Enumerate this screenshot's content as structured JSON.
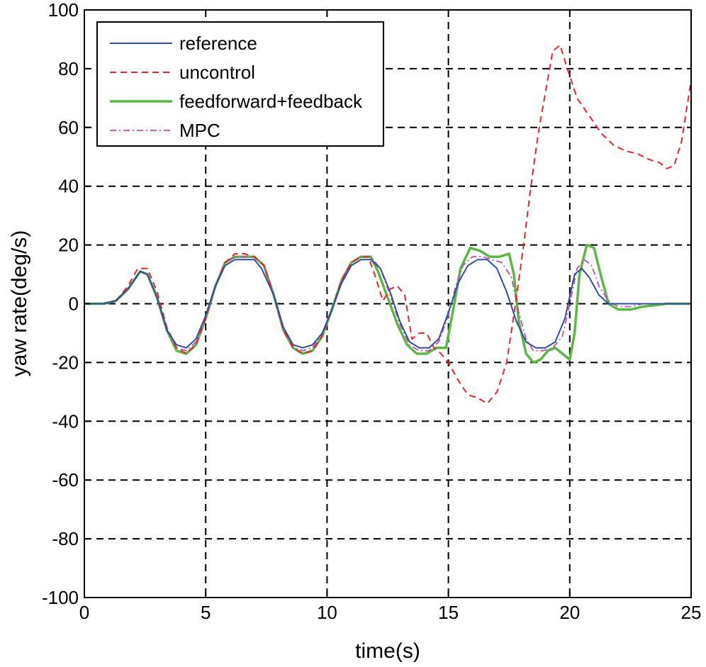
{
  "chart_data": {
    "type": "line",
    "title": "",
    "xlabel": "time(s)",
    "ylabel": "yaw rate(deg/s)",
    "xlim": [
      0,
      25
    ],
    "ylim": [
      -100,
      100
    ],
    "xticks": [
      0,
      5,
      10,
      15,
      20,
      25
    ],
    "yticks": [
      -100,
      -80,
      -60,
      -40,
      -20,
      0,
      20,
      40,
      60,
      80,
      100
    ],
    "grid": true,
    "legend_position": "top-left",
    "series": [
      {
        "name": "reference",
        "color": "#2f4fa0",
        "style": "solid",
        "x": [
          0,
          0.8,
          1.3,
          1.8,
          2.3,
          2.6,
          3.0,
          3.4,
          3.8,
          4.2,
          4.6,
          5.0,
          5.4,
          5.8,
          6.2,
          6.5,
          7.0,
          7.3,
          7.8,
          8.2,
          8.6,
          9.0,
          9.4,
          9.8,
          10.2,
          10.6,
          11.0,
          11.4,
          11.8,
          12.2,
          12.6,
          13.0,
          13.4,
          13.8,
          14.2,
          14.6,
          15.0,
          15.4,
          15.8,
          16.2,
          16.6,
          17.0,
          17.4,
          17.8,
          18.2,
          18.6,
          19.0,
          19.4,
          19.8,
          20.2,
          20.5,
          20.8,
          21.2,
          21.6,
          22.0,
          22.5,
          25
        ],
        "y": [
          0,
          0,
          1,
          5,
          11,
          10,
          2,
          -9,
          -14,
          -15,
          -12,
          -4,
          6,
          13,
          15,
          15,
          15,
          12,
          3,
          -8,
          -14,
          -15,
          -14,
          -10,
          -2,
          7,
          13,
          15,
          15,
          12,
          4,
          -6,
          -13,
          -15,
          -15,
          -12,
          -3,
          7,
          13,
          15,
          15,
          12,
          4,
          -6,
          -13,
          -15,
          -15,
          -13,
          -5,
          10,
          12,
          9,
          3,
          0,
          0,
          0,
          0
        ]
      },
      {
        "name": "uncontrol",
        "color": "#e8262b",
        "style": "dashed",
        "x": [
          0,
          0.8,
          1.3,
          1.8,
          2.2,
          2.6,
          3.0,
          3.4,
          3.8,
          4.2,
          4.6,
          5.0,
          5.4,
          5.8,
          6.2,
          6.6,
          7.0,
          7.4,
          7.8,
          8.2,
          8.6,
          9.0,
          9.4,
          9.8,
          10.2,
          10.6,
          11.0,
          11.4,
          11.7,
          12.0,
          12.3,
          12.6,
          12.9,
          13.2,
          13.5,
          13.8,
          14.1,
          14.4,
          14.7,
          15.0,
          15.4,
          15.8,
          16.2,
          16.6,
          17.0,
          17.4,
          17.8,
          18.1,
          18.4,
          18.7,
          19.0,
          19.3,
          19.6,
          19.9,
          20.3,
          20.8,
          21.3,
          21.8,
          22.3,
          22.8,
          23.3,
          23.7,
          24.0,
          24.3,
          24.6,
          25
        ],
        "y": [
          0,
          0,
          1,
          6,
          12,
          12,
          4,
          -8,
          -15,
          -17,
          -14,
          -5,
          6,
          14,
          17,
          17,
          16,
          13,
          3,
          -9,
          -15,
          -17,
          -16,
          -11,
          -2,
          8,
          14,
          16,
          16,
          9,
          1,
          5,
          6,
          3,
          -12,
          -10,
          -10,
          -15,
          -17,
          -20,
          -26,
          -31,
          -32,
          -34,
          -30,
          -20,
          2,
          20,
          40,
          58,
          72,
          86,
          88,
          80,
          70,
          64,
          58,
          54,
          52,
          51,
          49,
          48,
          46,
          47,
          55,
          76
        ]
      },
      {
        "name": "feedforward+feedback",
        "color": "#5ab843",
        "style": "solid-thick",
        "x": [
          0,
          0.8,
          1.3,
          1.8,
          2.3,
          2.6,
          3.0,
          3.4,
          3.8,
          4.2,
          4.6,
          5.0,
          5.4,
          5.8,
          6.2,
          6.6,
          7.0,
          7.4,
          7.8,
          8.2,
          8.6,
          9.0,
          9.4,
          9.8,
          10.2,
          10.6,
          11.0,
          11.4,
          11.8,
          12.1,
          12.5,
          12.9,
          13.3,
          13.7,
          14.1,
          14.5,
          14.9,
          15.2,
          15.5,
          15.9,
          16.3,
          16.7,
          17.1,
          17.5,
          17.7,
          17.9,
          18.2,
          18.5,
          18.8,
          19.1,
          19.4,
          19.7,
          20.0,
          20.2,
          20.4,
          20.7,
          21.0,
          21.3,
          21.6,
          22.0,
          22.5,
          23.0,
          24.0,
          25
        ],
        "y": [
          0,
          0,
          1,
          5,
          11,
          10,
          2,
          -9,
          -16,
          -17,
          -14,
          -5,
          6,
          14,
          16,
          16,
          16,
          13,
          3,
          -9,
          -15,
          -17,
          -16,
          -11,
          -2,
          8,
          14,
          16,
          16,
          11,
          2,
          -7,
          -14,
          -17,
          -17,
          -15,
          -15,
          -2,
          12,
          19,
          18,
          16,
          16,
          17,
          10,
          -6,
          -17,
          -20,
          -19,
          -16,
          -15,
          -17,
          -19,
          -10,
          10,
          20,
          19,
          9,
          0,
          -2,
          -2,
          -1,
          0,
          0
        ]
      },
      {
        "name": "MPC",
        "color": "#c04ab8",
        "style": "dashdot",
        "x": [
          0,
          0.8,
          1.3,
          1.8,
          2.3,
          2.6,
          3.0,
          3.4,
          3.8,
          4.2,
          4.6,
          5.0,
          5.4,
          5.8,
          6.2,
          6.6,
          7.0,
          7.4,
          7.8,
          8.2,
          8.6,
          9.0,
          9.4,
          9.8,
          10.2,
          10.6,
          11.0,
          11.4,
          11.8,
          12.2,
          12.6,
          13.0,
          13.4,
          13.8,
          14.2,
          14.6,
          15.0,
          15.3,
          15.6,
          16.0,
          16.4,
          16.8,
          17.2,
          17.6,
          17.9,
          18.2,
          18.5,
          18.9,
          19.3,
          19.7,
          20.0,
          20.3,
          20.6,
          20.9,
          21.2,
          21.6,
          22.0,
          22.5,
          23.0,
          24.0,
          25
        ],
        "y": [
          0,
          0,
          1,
          5,
          11,
          10,
          2,
          -9,
          -15,
          -16,
          -13,
          -5,
          6,
          14,
          16,
          16,
          16,
          13,
          3,
          -9,
          -15,
          -16,
          -15,
          -10,
          -2,
          8,
          14,
          16,
          16,
          12,
          3,
          -7,
          -14,
          -16,
          -16,
          -13,
          -4,
          6,
          13,
          16,
          16,
          15,
          14,
          9,
          -3,
          -12,
          -16,
          -16,
          -15,
          -11,
          0,
          12,
          15,
          13,
          6,
          1,
          -1,
          -1,
          0,
          0,
          0
        ]
      }
    ]
  }
}
